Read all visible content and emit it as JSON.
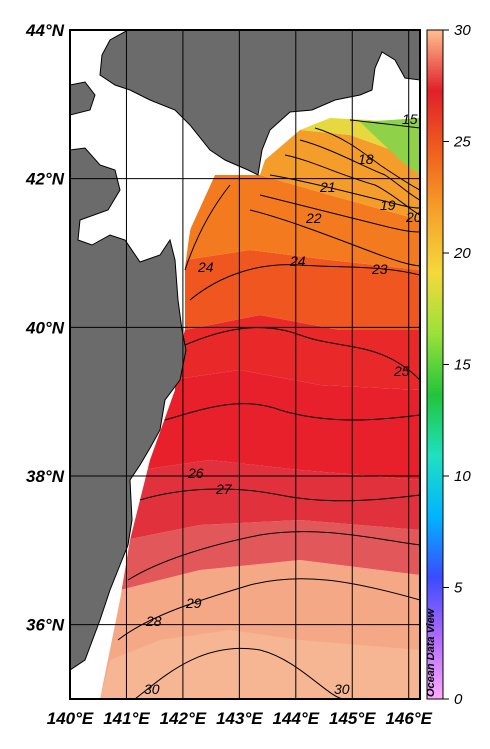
{
  "map": {
    "lat_labels": [
      "44°N",
      "42°N",
      "40°N",
      "38°N",
      "36°N"
    ],
    "lon_labels": [
      "140°E",
      "141°E",
      "142°E",
      "143°E",
      "144°E",
      "145°E",
      "146°E"
    ],
    "lat_range": [
      35,
      44
    ],
    "lon_range": [
      140,
      146.2
    ],
    "contour_labels": [
      "15",
      "18",
      "19",
      "20",
      "21",
      "22",
      "23",
      "24",
      "24",
      "25",
      "26",
      "27",
      "28",
      "29",
      "30",
      "30"
    ],
    "watermark": "Ocean Data View",
    "land_color": "#6b6b6b",
    "no_data_color": "#ffffff"
  },
  "colorbar": {
    "min": 0,
    "max": 30,
    "tick_labels": [
      "30",
      "25",
      "20",
      "15",
      "10",
      "5",
      "0"
    ],
    "stops": [
      "#ffaaff",
      "#b06bff",
      "#3a4bff",
      "#00b4ff",
      "#20e0c0",
      "#22c43a",
      "#9ae13a",
      "#f4d93c",
      "#f6a22a",
      "#f0601e",
      "#e0202a",
      "#ffc090"
    ]
  }
}
